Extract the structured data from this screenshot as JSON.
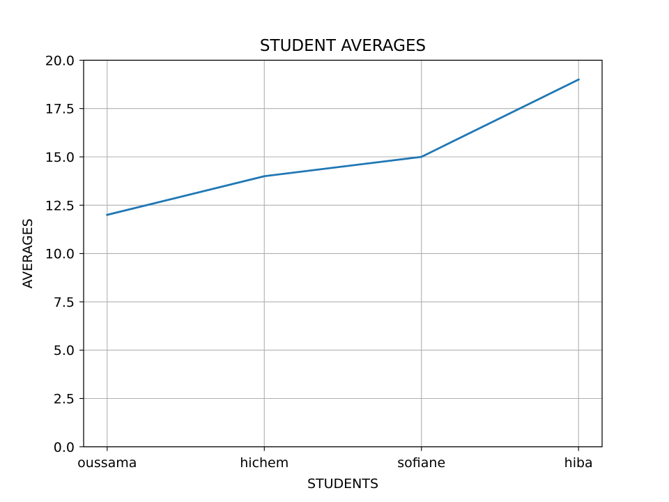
{
  "chart_data": {
    "type": "line",
    "title": "STUDENT AVERAGES",
    "xlabel": "STUDENTS",
    "ylabel": "AVERAGES",
    "categories": [
      "oussama",
      "hichem",
      "sofiane",
      "hiba"
    ],
    "series": [
      {
        "values": [
          12,
          14,
          15,
          19
        ],
        "color": "#1f77b4"
      }
    ],
    "ylim": [
      0,
      20
    ],
    "yticks": [
      "0.0",
      "2.5",
      "5.0",
      "7.5",
      "10.0",
      "12.5",
      "15.0",
      "17.5",
      "20.0"
    ],
    "grid": true,
    "legend": "none"
  }
}
